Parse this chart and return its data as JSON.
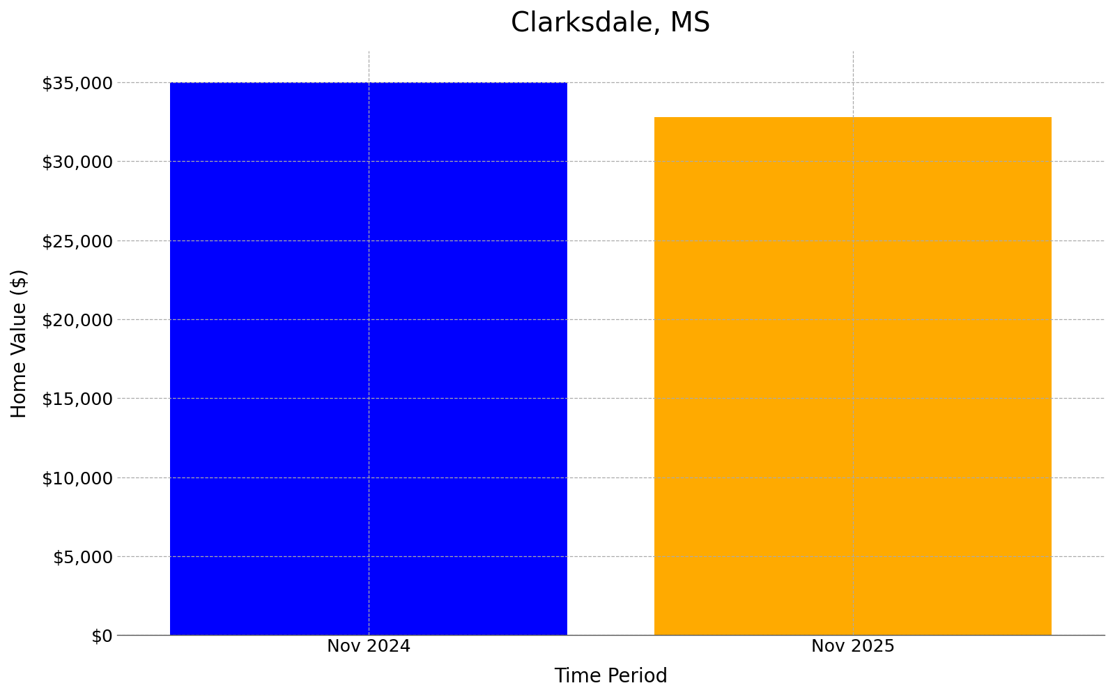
{
  "title": "Clarksdale, MS",
  "categories": [
    "Nov 2024",
    "Nov 2025"
  ],
  "values": [
    35000,
    32800
  ],
  "bar_colors": [
    "#0000ff",
    "#ffaa00"
  ],
  "xlabel": "Time Period",
  "ylabel": "Home Value ($)",
  "ylim": [
    0,
    37000
  ],
  "yticks": [
    0,
    5000,
    10000,
    15000,
    20000,
    25000,
    30000,
    35000
  ],
  "title_fontsize": 28,
  "axis_label_fontsize": 20,
  "tick_fontsize": 18,
  "bar_width": 0.82,
  "grid_color": "#aaaaaa",
  "grid_linestyle": "--",
  "grid_linewidth": 0.9,
  "background_color": "#ffffff",
  "xlim": [
    -0.52,
    1.52
  ]
}
